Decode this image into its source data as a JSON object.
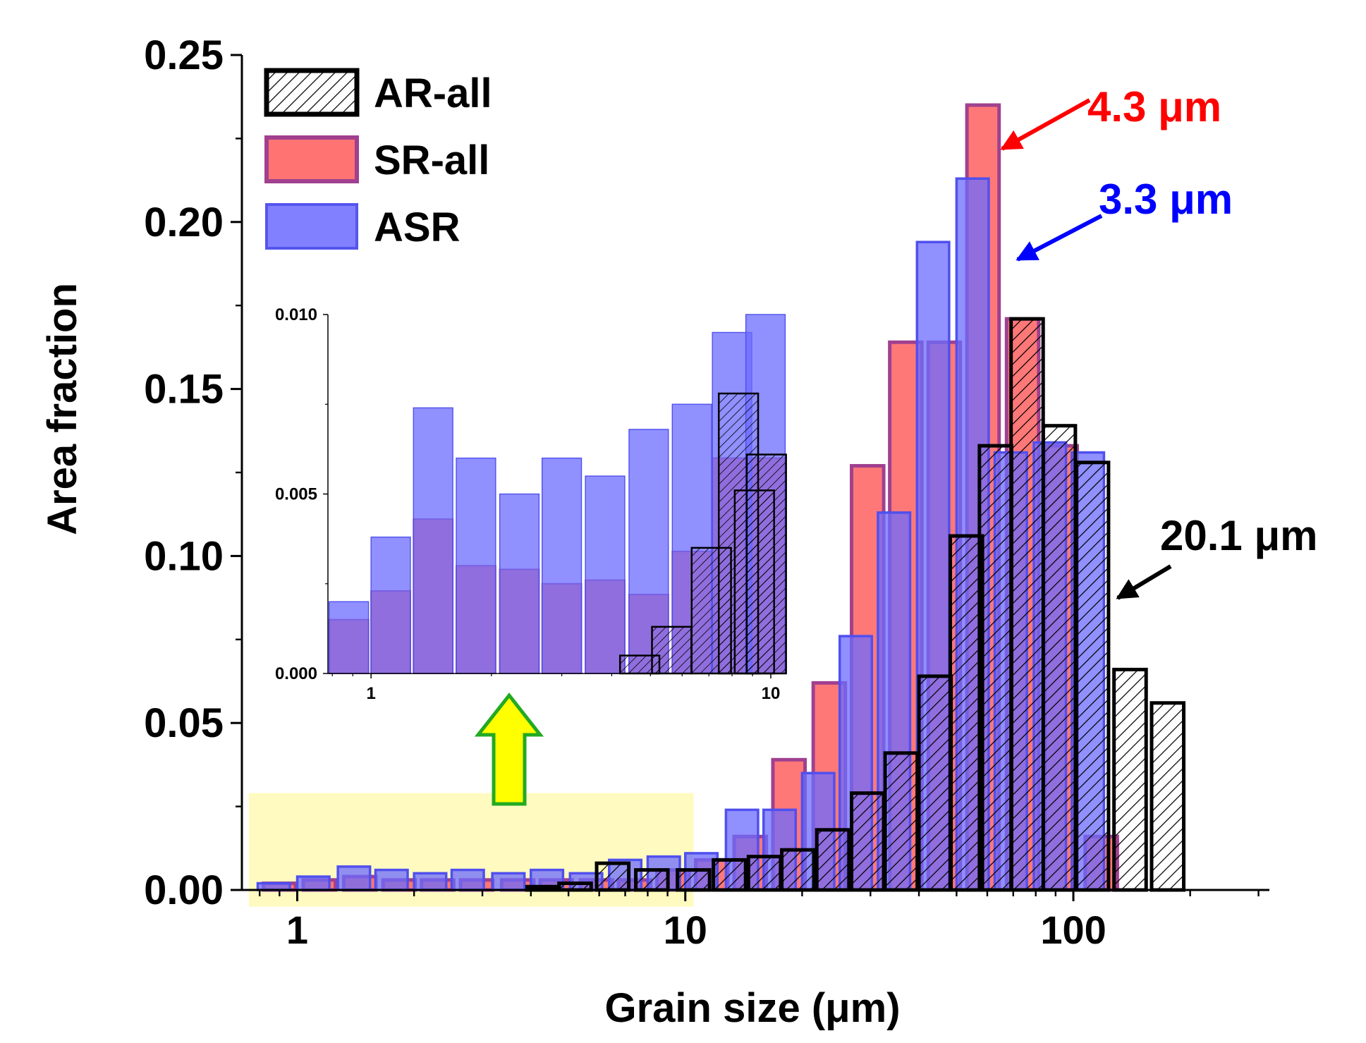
{
  "chart_data": [
    {
      "id": "main",
      "type": "bar",
      "title": "",
      "xlabel": "Grain size (μm)",
      "ylabel": "Area fraction",
      "xscale": "log",
      "xlim": [
        0.72,
        320
      ],
      "ylim": [
        0,
        0.25
      ],
      "xticks": [
        {
          "value": 1,
          "label": "1"
        },
        {
          "value": 10,
          "label": "10"
        },
        {
          "value": 100,
          "label": "100"
        }
      ],
      "yticks": [
        {
          "value": 0,
          "label": "0.00"
        },
        {
          "value": 0.05,
          "label": "0.05"
        },
        {
          "value": 0.1,
          "label": "0.10"
        },
        {
          "value": 0.15,
          "label": "0.15"
        },
        {
          "value": 0.2,
          "label": "0.20"
        },
        {
          "value": 0.25,
          "label": "0.25"
        }
      ],
      "grid": false,
      "legend_position": "top-left",
      "series": [
        {
          "name": "AR-all",
          "style": "hatched",
          "color": "#000000",
          "bars": [
            {
              "x": 4.3,
              "y": 0.001
            },
            {
              "x": 5.2,
              "y": 0.002
            },
            {
              "x": 6.5,
              "y": 0.008
            },
            {
              "x": 8.2,
              "y": 0.006
            },
            {
              "x": 10.5,
              "y": 0.006
            },
            {
              "x": 13,
              "y": 0.009
            },
            {
              "x": 16,
              "y": 0.01
            },
            {
              "x": 19.5,
              "y": 0.012
            },
            {
              "x": 24,
              "y": 0.018
            },
            {
              "x": 29.5,
              "y": 0.029
            },
            {
              "x": 36,
              "y": 0.041
            },
            {
              "x": 44,
              "y": 0.064
            },
            {
              "x": 53,
              "y": 0.106
            },
            {
              "x": 63,
              "y": 0.133
            },
            {
              "x": 76,
              "y": 0.171
            },
            {
              "x": 92,
              "y": 0.139
            },
            {
              "x": 112,
              "y": 0.128
            },
            {
              "x": 140,
              "y": 0.066
            },
            {
              "x": 175,
              "y": 0.056
            }
          ]
        },
        {
          "name": "SR-all",
          "style": "filled",
          "color": "#ff5a5a",
          "bars": [
            {
              "x": 0.9,
              "y": 0.002
            },
            {
              "x": 1.14,
              "y": 0.003
            },
            {
              "x": 1.45,
              "y": 0.004
            },
            {
              "x": 1.83,
              "y": 0.003
            },
            {
              "x": 2.3,
              "y": 0.003
            },
            {
              "x": 2.9,
              "y": 0.003
            },
            {
              "x": 3.7,
              "y": 0.003
            },
            {
              "x": 4.65,
              "y": 0.003
            },
            {
              "x": 5.9,
              "y": 0.003
            },
            {
              "x": 7.4,
              "y": 0.003
            },
            {
              "x": 9.3,
              "y": 0.006
            },
            {
              "x": 11.7,
              "y": 0.009
            },
            {
              "x": 14.7,
              "y": 0.016
            },
            {
              "x": 18.5,
              "y": 0.039
            },
            {
              "x": 23.5,
              "y": 0.062
            },
            {
              "x": 29.5,
              "y": 0.127
            },
            {
              "x": 37,
              "y": 0.164
            },
            {
              "x": 46.5,
              "y": 0.164
            },
            {
              "x": 58.5,
              "y": 0.235
            },
            {
              "x": 74,
              "y": 0.171
            },
            {
              "x": 93,
              "y": 0.133
            },
            {
              "x": 118,
              "y": 0.016
            }
          ]
        },
        {
          "name": "ASR",
          "style": "filled",
          "color": "#6b6bff",
          "bars": [
            {
              "x": 0.87,
              "y": 0.002
            },
            {
              "x": 1.1,
              "y": 0.004
            },
            {
              "x": 1.4,
              "y": 0.007
            },
            {
              "x": 1.75,
              "y": 0.006
            },
            {
              "x": 2.2,
              "y": 0.005
            },
            {
              "x": 2.75,
              "y": 0.006
            },
            {
              "x": 3.5,
              "y": 0.005
            },
            {
              "x": 4.4,
              "y": 0.006
            },
            {
              "x": 5.55,
              "y": 0.005
            },
            {
              "x": 7.0,
              "y": 0.009
            },
            {
              "x": 8.8,
              "y": 0.01
            },
            {
              "x": 11,
              "y": 0.011
            },
            {
              "x": 14,
              "y": 0.024
            },
            {
              "x": 17.5,
              "y": 0.024
            },
            {
              "x": 22,
              "y": 0.035
            },
            {
              "x": 27.5,
              "y": 0.076
            },
            {
              "x": 34.5,
              "y": 0.113
            },
            {
              "x": 43.5,
              "y": 0.194
            },
            {
              "x": 55,
              "y": 0.213
            },
            {
              "x": 69,
              "y": 0.131
            },
            {
              "x": 87,
              "y": 0.134
            },
            {
              "x": 109,
              "y": 0.131
            }
          ]
        }
      ],
      "annotations": [
        {
          "text": "4.3 μm",
          "color": "#ff0000"
        },
        {
          "text": "3.3 μm",
          "color": "#0000ff"
        },
        {
          "text": "20.1 μm",
          "color": "#000000"
        }
      ],
      "highlight_region": {
        "x_range": [
          0.75,
          10.5
        ],
        "y_range": [
          -0.005,
          0.029
        ],
        "color": "#fffac0"
      },
      "zoom_arrow": {
        "fill": "#ffff00",
        "stroke": "#22aa22"
      }
    },
    {
      "id": "inset",
      "type": "bar",
      "xscale": "log",
      "xlim": [
        0.78,
        10
      ],
      "ylim": [
        0,
        0.01
      ],
      "xticks": [
        {
          "value": 1,
          "label": "1"
        },
        {
          "value": 10,
          "label": "10"
        }
      ],
      "yticks": [
        {
          "value": 0,
          "label": "0.000"
        },
        {
          "value": 0.005,
          "label": "0.005"
        },
        {
          "value": 0.01,
          "label": "0.010"
        }
      ],
      "series": [
        {
          "name": "AR-all",
          "style": "hatched",
          "color": "#000000",
          "bars": [
            {
              "x": 4.7,
              "y": 0.0005
            },
            {
              "x": 5.65,
              "y": 0.0013
            },
            {
              "x": 7.1,
              "y": 0.0035
            },
            {
              "x": 8.3,
              "y": 0.0078
            },
            {
              "x": 9.1,
              "y": 0.0051
            },
            {
              "x": 9.75,
              "y": 0.0061
            }
          ]
        },
        {
          "name": "SR-all",
          "style": "filled",
          "color": "#ff5a5a",
          "bars": [
            {
              "x": 0.88,
              "y": 0.0015
            },
            {
              "x": 1.12,
              "y": 0.0023
            },
            {
              "x": 1.43,
              "y": 0.0043
            },
            {
              "x": 1.83,
              "y": 0.003
            },
            {
              "x": 2.35,
              "y": 0.0029
            },
            {
              "x": 3.0,
              "y": 0.0025
            },
            {
              "x": 3.85,
              "y": 0.0026
            },
            {
              "x": 4.95,
              "y": 0.0022
            },
            {
              "x": 6.35,
              "y": 0.0034
            },
            {
              "x": 8.0,
              "y": 0.006
            },
            {
              "x": 9.7,
              "y": 0.006
            }
          ]
        },
        {
          "name": "ASR",
          "style": "filled",
          "color": "#6b6bff",
          "bars": [
            {
              "x": 0.88,
              "y": 0.002
            },
            {
              "x": 1.12,
              "y": 0.0038
            },
            {
              "x": 1.43,
              "y": 0.0074
            },
            {
              "x": 1.83,
              "y": 0.006
            },
            {
              "x": 2.35,
              "y": 0.005
            },
            {
              "x": 3.0,
              "y": 0.006
            },
            {
              "x": 3.85,
              "y": 0.0055
            },
            {
              "x": 4.95,
              "y": 0.0068
            },
            {
              "x": 6.35,
              "y": 0.0075
            },
            {
              "x": 8.0,
              "y": 0.0095
            },
            {
              "x": 9.7,
              "y": 0.01
            }
          ]
        }
      ]
    }
  ]
}
